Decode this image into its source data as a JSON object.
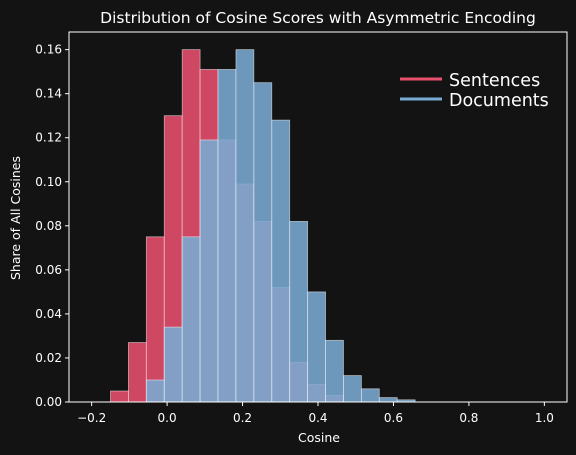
{
  "chart_data": {
    "type": "bar",
    "title": "Distribution of Cosine Scores with Asymmetric Encoding",
    "xlabel": "Cosine",
    "ylabel": "Share of All Cosines",
    "xlim": [
      -0.26,
      1.06
    ],
    "ylim": [
      0,
      0.168
    ],
    "bin_width": 0.0475,
    "x_ticks": [
      "−0.2",
      "0.0",
      "0.2",
      "0.4",
      "0.6",
      "0.8",
      "1.0"
    ],
    "x_tick_values": [
      -0.2,
      0.0,
      0.2,
      0.4,
      0.6,
      0.8,
      1.0
    ],
    "y_ticks": [
      "0.00",
      "0.02",
      "0.04",
      "0.06",
      "0.08",
      "0.10",
      "0.12",
      "0.14",
      "0.16"
    ],
    "y_tick_values": [
      0,
      0.02,
      0.04,
      0.06,
      0.08,
      0.1,
      0.12,
      0.14,
      0.16
    ],
    "grid": false,
    "legend_position": "top-right",
    "series": [
      {
        "name": "Sentences",
        "color": "#e8506e",
        "opacity": 0.88,
        "x_start": [
          -0.15,
          -0.1025,
          -0.055,
          -0.0075,
          0.04,
          0.0875,
          0.135,
          0.1825,
          0.23,
          0.2775,
          0.325,
          0.3725,
          0.42
        ],
        "values": [
          0.005,
          0.027,
          0.075,
          0.13,
          0.16,
          0.151,
          0.119,
          0.099,
          0.082,
          0.052,
          0.018,
          0.008,
          0.003
        ]
      },
      {
        "name": "Documents",
        "color": "#7aabd4",
        "opacity": 0.88,
        "x_start": [
          -0.055,
          -0.0075,
          0.04,
          0.0875,
          0.135,
          0.1825,
          0.23,
          0.2775,
          0.325,
          0.3725,
          0.42,
          0.4675,
          0.515,
          0.5625,
          0.61
        ],
        "values": [
          0.01,
          0.034,
          0.075,
          0.119,
          0.151,
          0.16,
          0.145,
          0.128,
          0.082,
          0.05,
          0.028,
          0.012,
          0.006,
          0.002,
          0.001
        ]
      }
    ]
  }
}
